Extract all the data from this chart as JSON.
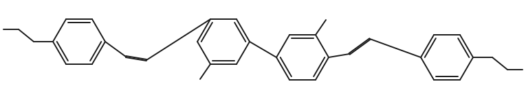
{
  "background_color": "#ffffff",
  "line_color": "#1a1a1a",
  "line_width": 1.4,
  "dbo": 0.012,
  "figsize": [
    7.65,
    1.45
  ],
  "dpi": 100,
  "xlim": [
    0,
    7.65
  ],
  "ylim": [
    0,
    1.45
  ]
}
